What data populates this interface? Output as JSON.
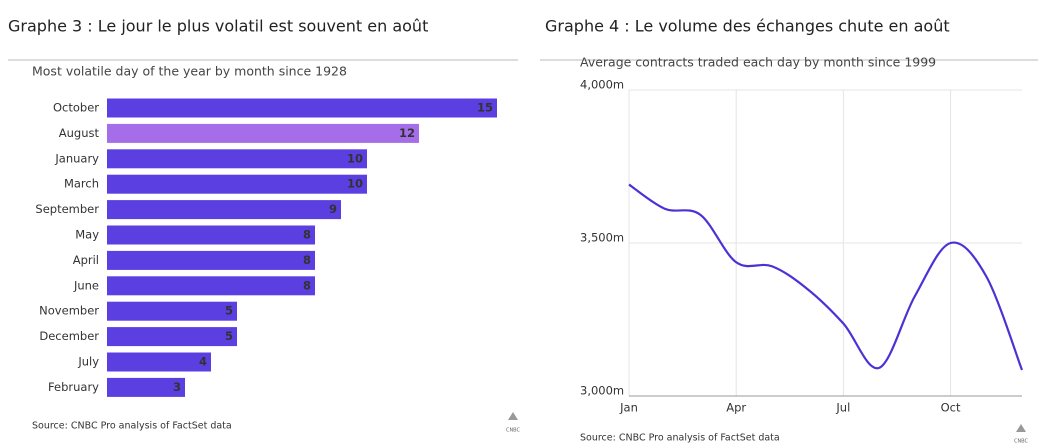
{
  "chart_data": [
    {
      "type": "barh",
      "heading": "Graphe 3 : Le jour le plus volatil est souvent en août",
      "title": "Most volatile day of the year by month since 1928",
      "categories": [
        "October",
        "August",
        "January",
        "March",
        "September",
        "May",
        "April",
        "June",
        "November",
        "December",
        "July",
        "February"
      ],
      "values": [
        15,
        12,
        10,
        10,
        9,
        8,
        8,
        8,
        5,
        5,
        4,
        3
      ],
      "colors": [
        "#5b3fe0",
        "#a56ee8",
        "#5b3fe0",
        "#5b3fe0",
        "#5b3fe0",
        "#5b3fe0",
        "#5b3fe0",
        "#5b3fe0",
        "#5b3fe0",
        "#5b3fe0",
        "#5b3fe0",
        "#5b3fe0"
      ],
      "source": "Source: CNBC Pro analysis of FactSet data",
      "logo": "CNBC"
    },
    {
      "type": "line",
      "heading": "Graphe 4 : Le volume des échanges chute en août",
      "title": "Average contracts traded each day by month since 1999",
      "categories": [
        "Jan",
        null,
        null,
        "Apr",
        null,
        null,
        "Jul",
        null,
        null,
        "Oct",
        null,
        null
      ],
      "series": [
        {
          "color": "#4b32d6",
          "values": [
            3691,
            3612,
            3592,
            3437,
            3424,
            3349,
            3237,
            3092,
            3326,
            3500,
            3391,
            3085
          ]
        }
      ],
      "ylim": [
        3000,
        4000
      ],
      "yticks": [
        {
          "value": 3000,
          "label": "3,000m"
        },
        {
          "value": 3500,
          "label": "3,500m"
        },
        {
          "value": 4000,
          "label": "4,000m"
        }
      ],
      "grid": true,
      "source": "Source: CNBC Pro analysis of FactSet data",
      "logo": "CNBC"
    }
  ]
}
